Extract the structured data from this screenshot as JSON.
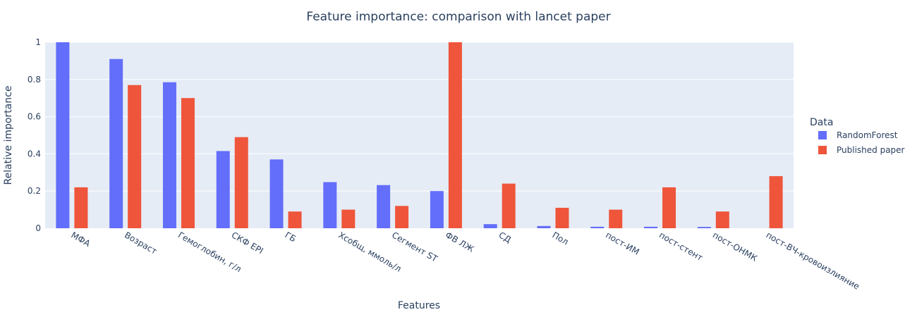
{
  "chart_data": {
    "type": "bar",
    "title": "Feature importance: comparison with lancet paper",
    "xlabel": "Features",
    "ylabel": "Relative importance",
    "ylim": [
      0,
      1
    ],
    "yticks": [
      "0",
      "0.2",
      "0.4",
      "0.6",
      "0.8",
      "1"
    ],
    "grid": true,
    "legend_title": "Data",
    "legend_position": "right",
    "categories": [
      "МФА",
      "Возраст",
      "Гемоглобин, г/л",
      "СКФ EPI",
      "ГБ",
      "Хсобщ, ммоль/л",
      "Сегмент ST",
      "ФВ ЛЖ",
      "СД",
      "Пол",
      "пост-ИМ",
      "пост-стент",
      "пост-ОНМК",
      "пост-ВЧ-кровоизлияние"
    ],
    "series": [
      {
        "name": "RandomForest",
        "color": "#636efa",
        "values": [
          1.0,
          0.91,
          0.785,
          0.415,
          0.37,
          0.248,
          0.232,
          0.2,
          0.022,
          0.012,
          0.008,
          0.008,
          0.007,
          0.0
        ]
      },
      {
        "name": "Published paper",
        "color": "#ef553b",
        "values": [
          0.22,
          0.77,
          0.7,
          0.49,
          0.09,
          0.1,
          0.12,
          1.0,
          0.24,
          0.11,
          0.1,
          0.22,
          0.09,
          0.28
        ]
      }
    ]
  }
}
